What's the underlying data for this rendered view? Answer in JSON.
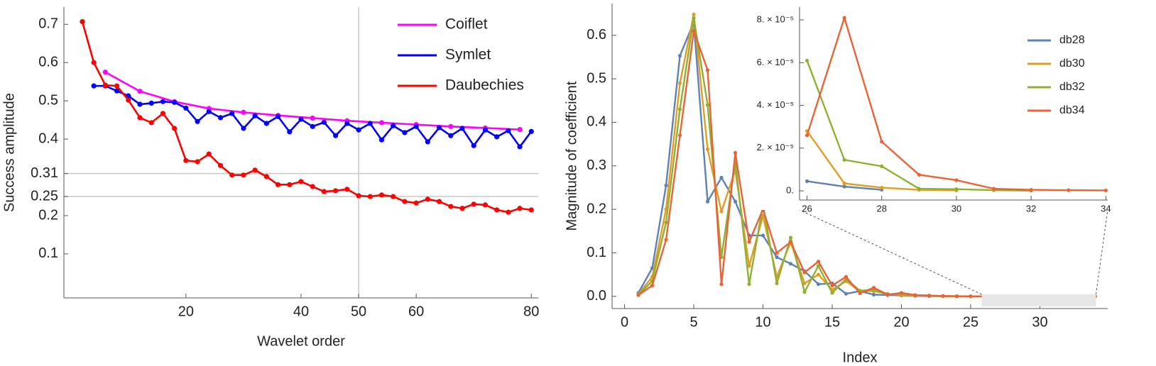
{
  "chart_data": [
    {
      "type": "line",
      "x_label": "Wavelet order",
      "y_label": "Success amplitude",
      "xlim": [
        -1.2,
        81.2
      ],
      "ylim": [
        -0.015,
        0.745
      ],
      "xticks": [
        20,
        40,
        50,
        60,
        80
      ],
      "yticks": [
        0.1,
        0.2,
        0.25,
        0.31,
        0.4,
        0.5,
        0.6,
        0.7
      ],
      "xgrid": [
        50
      ],
      "ygrid": [
        0.31,
        0.25
      ],
      "legend": "top-right",
      "series": [
        {
          "name": "Coiflet",
          "color": "#ff00ff",
          "x": [
            6,
            12,
            18,
            24,
            30,
            36,
            42,
            48,
            54,
            60,
            66,
            72,
            78
          ],
          "values": [
            0.575,
            0.525,
            0.498,
            0.48,
            0.47,
            0.462,
            0.455,
            0.448,
            0.443,
            0.438,
            0.433,
            0.429,
            0.425
          ]
        },
        {
          "name": "Symlet",
          "color": "#0000ff",
          "x": [
            4,
            6,
            8,
            10,
            12,
            14,
            16,
            18,
            20,
            22,
            24,
            26,
            28,
            30,
            32,
            34,
            36,
            38,
            40,
            42,
            44,
            46,
            48,
            50,
            52,
            54,
            56,
            58,
            60,
            62,
            64,
            66,
            68,
            70,
            72,
            74,
            76,
            78,
            80
          ],
          "values": [
            0.539,
            0.539,
            0.526,
            0.513,
            0.491,
            0.494,
            0.498,
            0.496,
            0.481,
            0.446,
            0.472,
            0.456,
            0.467,
            0.428,
            0.461,
            0.441,
            0.459,
            0.419,
            0.452,
            0.433,
            0.444,
            0.409,
            0.441,
            0.424,
            0.441,
            0.398,
            0.435,
            0.417,
            0.433,
            0.393,
            0.43,
            0.409,
            0.428,
            0.383,
            0.424,
            0.406,
            0.422,
            0.38,
            0.42
          ]
        },
        {
          "name": "Daubechies",
          "color": "#ff0000",
          "x": [
            2,
            4,
            6,
            8,
            10,
            12,
            14,
            16,
            18,
            20,
            22,
            24,
            26,
            28,
            30,
            32,
            34,
            36,
            38,
            40,
            42,
            44,
            46,
            48,
            50,
            52,
            54,
            56,
            58,
            60,
            62,
            64,
            66,
            68,
            70,
            72,
            74,
            76,
            78,
            80
          ],
          "values": [
            0.707,
            0.6,
            0.541,
            0.539,
            0.502,
            0.456,
            0.443,
            0.467,
            0.428,
            0.344,
            0.341,
            0.361,
            0.331,
            0.306,
            0.306,
            0.319,
            0.302,
            0.281,
            0.281,
            0.289,
            0.276,
            0.263,
            0.265,
            0.269,
            0.252,
            0.25,
            0.254,
            0.25,
            0.237,
            0.233,
            0.243,
            0.237,
            0.224,
            0.219,
            0.23,
            0.228,
            0.215,
            0.209,
            0.219,
            0.215
          ]
        }
      ]
    },
    {
      "type": "line",
      "x_label": "Index",
      "y_label": "Magnitude of coefficient",
      "xlim": [
        -0.9,
        34.9
      ],
      "ylim": [
        -0.028,
        0.673
      ],
      "xticks": [
        0,
        5,
        10,
        15,
        20,
        25,
        30
      ],
      "yticks": [
        {
          "value": 0,
          "label": "0.0"
        },
        0.1,
        0.2,
        0.3,
        0.4,
        0.5,
        0.6
      ],
      "series": [
        {
          "name": "db28",
          "color": "#5e81b5",
          "x": [
            1,
            2,
            3,
            4,
            5,
            6,
            7,
            8,
            9,
            10,
            11,
            12,
            13,
            14,
            15,
            16,
            17,
            18,
            19,
            20,
            21,
            22,
            23,
            24,
            25,
            26,
            27,
            28
          ],
          "values": [
            0.008,
            0.065,
            0.255,
            0.553,
            0.63,
            0.218,
            0.273,
            0.218,
            0.14,
            0.14,
            0.09,
            0.075,
            0.058,
            0.028,
            0.03,
            0.006,
            0.012,
            0.004,
            0.003,
            0.002,
            0.001,
            0.0005,
            0.0002,
            0.0001,
            3e-05,
            4.5e-06,
            2e-06,
            5e-07
          ]
        },
        {
          "name": "db30",
          "color": "#e19c24",
          "x": [
            1,
            2,
            3,
            4,
            5,
            6,
            7,
            8,
            9,
            10,
            11,
            12,
            13,
            14,
            15,
            16,
            17,
            18,
            19,
            20,
            21,
            22,
            23,
            24,
            25,
            26,
            27,
            28,
            29,
            30
          ],
          "values": [
            0.005,
            0.045,
            0.2,
            0.49,
            0.648,
            0.338,
            0.195,
            0.29,
            0.07,
            0.185,
            0.045,
            0.125,
            0.03,
            0.05,
            0.015,
            0.035,
            0.012,
            0.012,
            0.006,
            0.003,
            0.002,
            0.001,
            0.0005,
            0.0002,
            6e-05,
            2.8e-05,
            3.5e-06,
            1.5e-06,
            5e-07,
            2e-07
          ]
        },
        {
          "name": "db32",
          "color": "#8fb032",
          "x": [
            1,
            2,
            3,
            4,
            5,
            6,
            7,
            8,
            9,
            10,
            11,
            12,
            13,
            14,
            15,
            16,
            17,
            18,
            19,
            20,
            21,
            22,
            23,
            24,
            25,
            26,
            27,
            28,
            29,
            30,
            31,
            32
          ],
          "values": [
            0.004,
            0.035,
            0.17,
            0.43,
            0.64,
            0.44,
            0.09,
            0.31,
            0.028,
            0.21,
            0.03,
            0.135,
            0.01,
            0.07,
            0.008,
            0.04,
            0.013,
            0.015,
            0.004,
            0.006,
            0.003,
            0.0015,
            0.0008,
            0.0003,
            0.0001,
            6.1e-05,
            1.45e-05,
            1.15e-05,
            1e-06,
            8e-07,
            3e-07,
            1e-07
          ]
        },
        {
          "name": "db34",
          "color": "#eb6235",
          "x": [
            1,
            2,
            3,
            4,
            5,
            6,
            7,
            8,
            9,
            10,
            11,
            12,
            13,
            14,
            15,
            16,
            17,
            18,
            19,
            20,
            21,
            22,
            23,
            24,
            25,
            26,
            27,
            28,
            29,
            30,
            31,
            32,
            33,
            34
          ],
          "values": [
            0.003,
            0.025,
            0.13,
            0.37,
            0.61,
            0.52,
            0.028,
            0.33,
            0.125,
            0.2,
            0.1,
            0.125,
            0.055,
            0.08,
            0.025,
            0.045,
            0.007,
            0.02,
            0.004,
            0.008,
            0.003,
            0.002,
            0.001,
            0.0005,
            0.0002,
            2.6e-05,
            8.1e-05,
            2.3e-05,
            7.5e-06,
            5e-06,
            1e-06,
            5e-07,
            3e-07,
            2e-07
          ]
        }
      ]
    },
    {
      "type": "line",
      "xlim": [
        25.8,
        34.05
      ],
      "ylim": [
        -4.3e-06,
        8.6e-05
      ],
      "xticks": [
        26,
        28,
        30,
        32,
        34
      ],
      "yticks": [
        {
          "value": 0,
          "label": "0."
        },
        {
          "value": 2e-05,
          "label": "2. × 10⁻⁵"
        },
        {
          "value": 4e-05,
          "label": "4. × 10⁻⁵"
        },
        {
          "value": 6e-05,
          "label": "6. × 10⁻⁵"
        },
        {
          "value": 8e-05,
          "label": "8. × 10⁻⁵"
        }
      ],
      "legend": "top-right",
      "series": [
        {
          "name": "db28",
          "color": "#5e81b5",
          "x": [
            26,
            27,
            28
          ],
          "values": [
            4.5e-06,
            2e-06,
            5e-07
          ]
        },
        {
          "name": "db30",
          "color": "#e19c24",
          "x": [
            26,
            27,
            28,
            29,
            30
          ],
          "values": [
            2.8e-05,
            3.5e-06,
            1.5e-06,
            5e-07,
            2e-07
          ]
        },
        {
          "name": "db32",
          "color": "#8fb032",
          "x": [
            26,
            27,
            28,
            29,
            30,
            31,
            32
          ],
          "values": [
            6.1e-05,
            1.45e-05,
            1.15e-05,
            1e-06,
            8e-07,
            3e-07,
            1e-07
          ]
        },
        {
          "name": "db34",
          "color": "#eb6235",
          "x": [
            26,
            27,
            28,
            29,
            30,
            31,
            32,
            33,
            34
          ],
          "values": [
            2.6e-05,
            8.1e-05,
            2.3e-05,
            7.5e-06,
            5e-06,
            1e-06,
            5e-07,
            3e-07,
            2e-07
          ]
        }
      ]
    }
  ]
}
